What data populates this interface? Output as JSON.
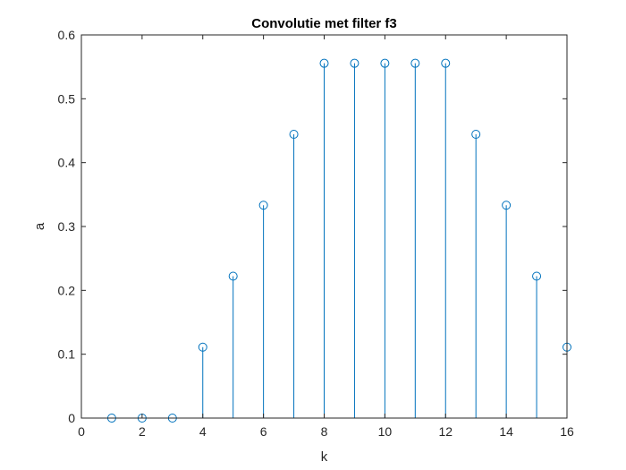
{
  "chart_data": {
    "type": "stem",
    "title": "Convolutie met filter f3",
    "xlabel": "k",
    "ylabel": "a",
    "xlim": [
      0,
      16
    ],
    "ylim": [
      0,
      0.6
    ],
    "xticks": [
      0,
      2,
      4,
      6,
      8,
      10,
      12,
      14,
      16
    ],
    "yticks": [
      0,
      0.1,
      0.2,
      0.3,
      0.4,
      0.5,
      0.6
    ],
    "xtick_labels": [
      "0",
      "2",
      "4",
      "6",
      "8",
      "10",
      "12",
      "14",
      "16"
    ],
    "ytick_labels": [
      "0",
      "0.1",
      "0.2",
      "0.3",
      "0.4",
      "0.5",
      "0.6"
    ],
    "grid": false,
    "box": true,
    "marker": "circle",
    "series": [
      {
        "color": "#0072BD",
        "x": [
          1,
          2,
          3,
          4,
          5,
          6,
          7,
          8,
          9,
          10,
          11,
          12,
          13,
          14,
          15,
          16
        ],
        "y": [
          0,
          0,
          0,
          0.1111,
          0.2222,
          0.3333,
          0.4444,
          0.5556,
          0.5556,
          0.5556,
          0.5556,
          0.5556,
          0.4444,
          0.3333,
          0.2222,
          0.1111
        ]
      }
    ]
  }
}
